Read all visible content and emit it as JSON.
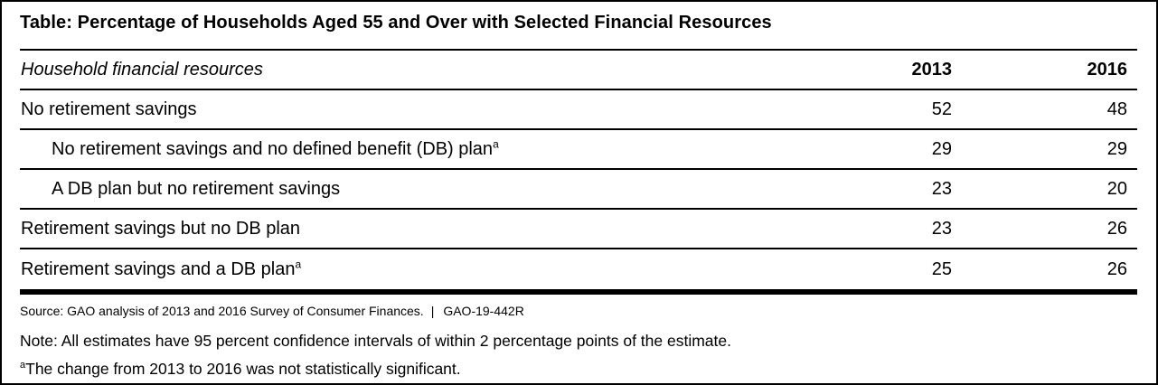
{
  "title": "Table: Percentage of Households Aged 55 and Over with Selected Financial Resources",
  "table": {
    "header": {
      "label": "Household financial resources",
      "col_2013": "2013",
      "col_2016": "2016"
    },
    "rows": [
      {
        "label": "No retirement savings",
        "sup": "",
        "v2013": "52",
        "v2016": "48"
      },
      {
        "label": "No retirement savings and no defined benefit (DB) plan",
        "sup": "a",
        "v2013": "29",
        "v2016": "29"
      },
      {
        "label": "A DB plan but no retirement savings",
        "sup": "",
        "v2013": "23",
        "v2016": "20"
      },
      {
        "label": "Retirement savings but no DB plan",
        "sup": "",
        "v2013": "23",
        "v2016": "26"
      },
      {
        "label": "Retirement savings and a DB plan",
        "sup": "a",
        "v2013": "25",
        "v2016": "26"
      }
    ]
  },
  "footer": {
    "source": "Source: GAO analysis of 2013 and 2016 Survey of Consumer Finances.",
    "divider": "|",
    "report_id": "GAO-19-442R",
    "note": "Note: All estimates have 95 percent confidence intervals of within 2 percentage points of the estimate.",
    "footnote_marker": "a",
    "footnote": "The change from 2013 to 2016 was not statistically significant."
  },
  "colors": {
    "text": "#000000",
    "background": "#ffffff",
    "rule": "#000000"
  },
  "chart_data": {
    "type": "table",
    "title": "Table: Percentage of Households Aged 55 and Over with Selected Financial Resources",
    "categories": [
      "No retirement savings",
      "No retirement savings and no defined benefit (DB) plan",
      "A DB plan but no retirement savings",
      "Retirement savings but no DB plan",
      "Retirement savings and a DB plan"
    ],
    "series": [
      {
        "name": "2013",
        "values": [
          52,
          29,
          23,
          23,
          25
        ]
      },
      {
        "name": "2016",
        "values": [
          48,
          29,
          20,
          26,
          26
        ]
      }
    ]
  }
}
